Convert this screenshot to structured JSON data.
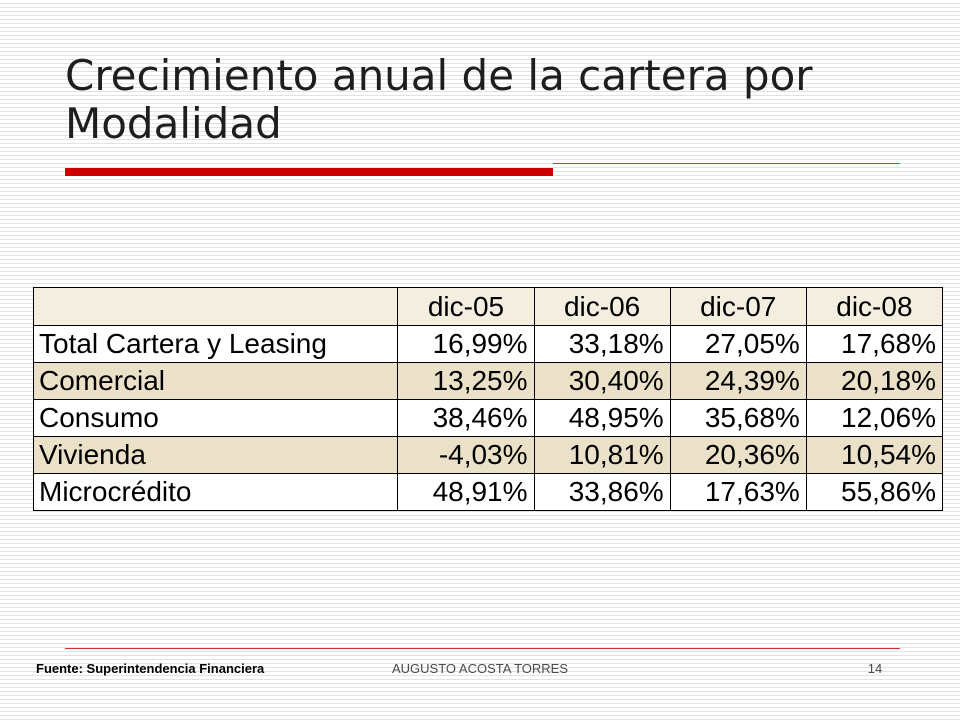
{
  "slide": {
    "title": "Crecimiento anual de la cartera por Modalidad",
    "accent_color": "#cc0000",
    "table": {
      "columns": [
        "",
        "dic-05",
        "dic-06",
        "dic-07",
        "dic-08"
      ],
      "rows": [
        {
          "label": "Total Cartera y Leasing",
          "values": [
            "16,99%",
            "33,18%",
            "27,05%",
            "17,68%"
          ]
        },
        {
          "label": "Comercial",
          "values": [
            "13,25%",
            "30,40%",
            "24,39%",
            "20,18%"
          ]
        },
        {
          "label": "Consumo",
          "values": [
            "38,46%",
            "48,95%",
            "35,68%",
            "12,06%"
          ]
        },
        {
          "label": "Vivienda",
          "values": [
            "-4,03%",
            "10,81%",
            "20,36%",
            "10,54%"
          ]
        },
        {
          "label": "Microcrédito",
          "values": [
            "48,91%",
            "33,86%",
            "17,63%",
            "55,86%"
          ]
        }
      ]
    },
    "footer": {
      "source": "Fuente: Superintendencia Financiera",
      "author": "AUGUSTO ACOSTA TORRES",
      "page_number": "14"
    }
  }
}
